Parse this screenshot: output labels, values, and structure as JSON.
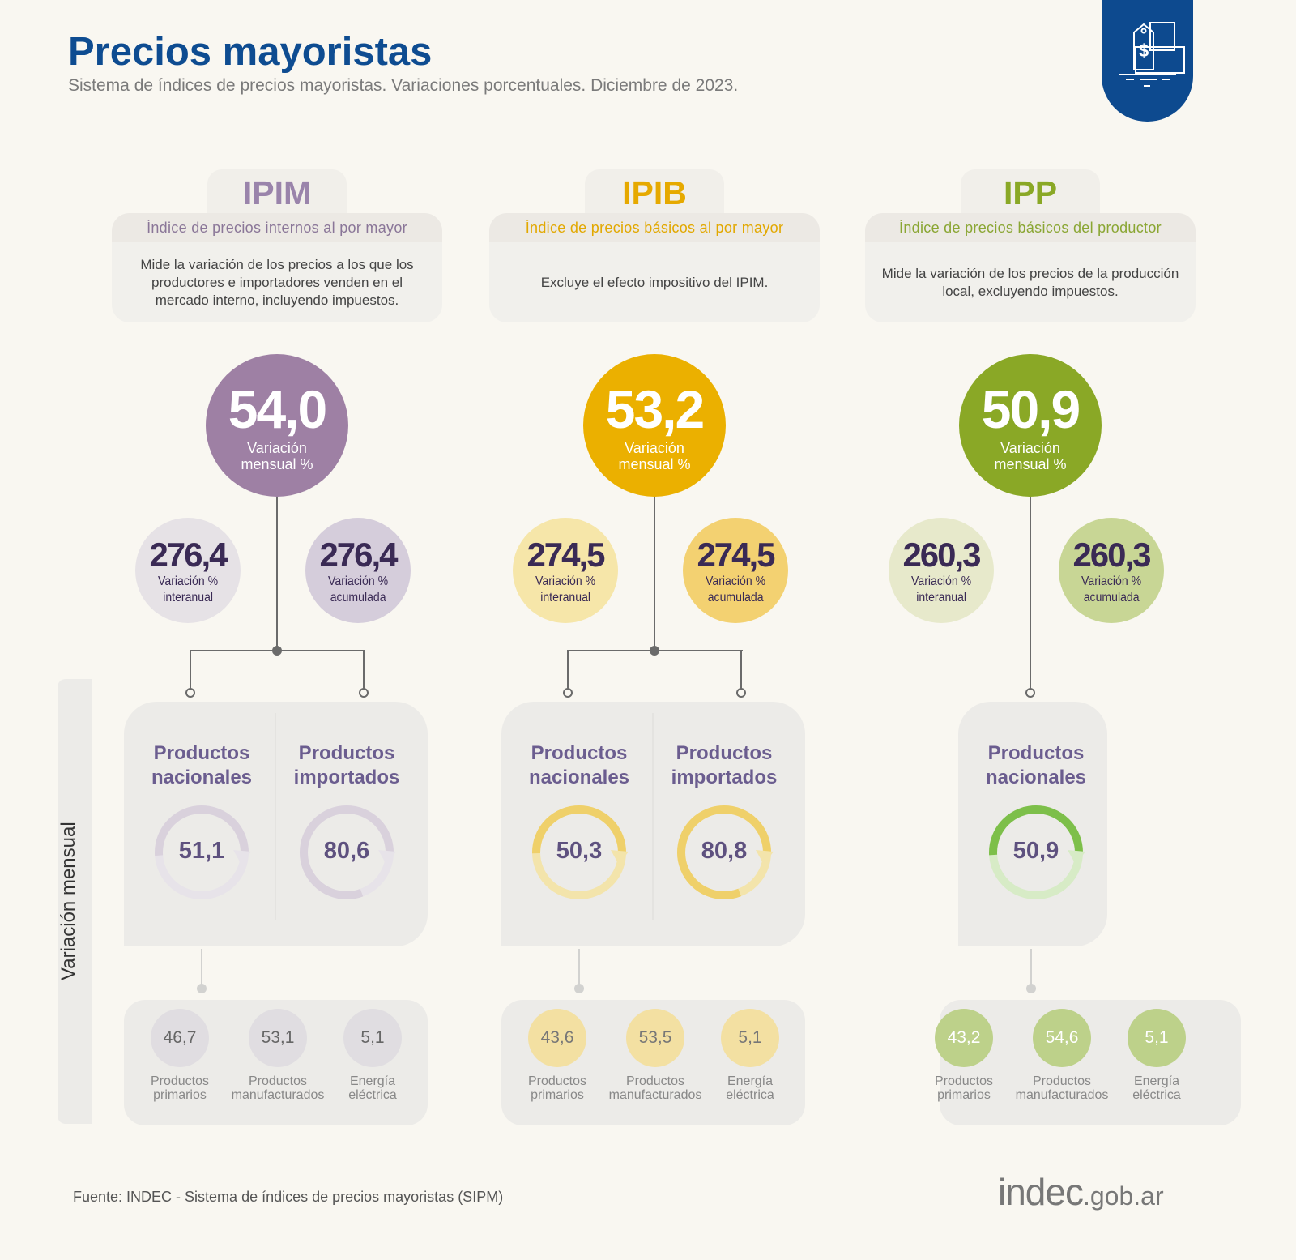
{
  "header": {
    "title": "Precios mayoristas",
    "subtitle": "Sistema de índices de precios mayoristas. Variaciones porcentuales. Diciembre de 2023.",
    "badge_icon": "price-tag-boxes-icon"
  },
  "side_label": "Variación mensual",
  "columns": [
    {
      "code": "IPIM",
      "name": "Índice de precios internos al por mayor",
      "description": "Mide la variación de los precios a los que los productores e importadores venden en el mercado interno, incluyendo impuestos.",
      "monthly": {
        "value": "54,0",
        "label1": "Variación",
        "label2": "mensual %"
      },
      "interanual": {
        "value": "276,4",
        "label1": "Variación %",
        "label2": "interanual"
      },
      "acumulada": {
        "value": "276,4",
        "label1": "Variación %",
        "label2": "acumulada"
      },
      "products": [
        {
          "label1": "Productos",
          "label2": "nacionales",
          "value": "51,1",
          "fill": 51.1
        },
        {
          "label1": "Productos",
          "label2": "importados",
          "value": "80,6",
          "fill": 80.6
        }
      ],
      "breakdown": [
        {
          "value": "46,7",
          "label1": "Productos",
          "label2": "primarios"
        },
        {
          "value": "53,1",
          "label1": "Productos",
          "label2": "manufacturados"
        },
        {
          "value": "5,1",
          "label1": "Energía",
          "label2": "eléctrica"
        }
      ],
      "colors": {
        "main": "#9e80a4",
        "title": "#9a84ab",
        "sub": "#8a7698",
        "inter": "#e6e2e6",
        "acum": "#d5cddb",
        "ring": "#d9d1dc",
        "ringBg": "#e7e3e9",
        "bc": "#e0dde1",
        "bcText": "#666666"
      }
    },
    {
      "code": "IPIB",
      "name": "Índice de precios básicos al por mayor",
      "description": "Excluye el efecto impositivo del IPIM.",
      "monthly": {
        "value": "53,2",
        "label1": "Variación",
        "label2": "mensual %"
      },
      "interanual": {
        "value": "274,5",
        "label1": "Variación %",
        "label2": "interanual"
      },
      "acumulada": {
        "value": "274,5",
        "label1": "Variación %",
        "label2": "acumulada"
      },
      "products": [
        {
          "label1": "Productos",
          "label2": "nacionales",
          "value": "50,3",
          "fill": 50.3
        },
        {
          "label1": "Productos",
          "label2": "importados",
          "value": "80,8",
          "fill": 80.8
        }
      ],
      "breakdown": [
        {
          "value": "43,6",
          "label1": "Productos",
          "label2": "primarios"
        },
        {
          "value": "53,5",
          "label1": "Productos",
          "label2": "manufacturados"
        },
        {
          "value": "5,1",
          "label1": "Energía",
          "label2": "eléctrica"
        }
      ],
      "colors": {
        "main": "#ebb000",
        "title": "#e6a900",
        "sub": "#e2a800",
        "inter": "#f6e6a9",
        "acum": "#f3d171",
        "ring": "#efd06a",
        "ringBg": "#f3e4ab",
        "bc": "#f3e0a2",
        "bcText": "#777777"
      }
    },
    {
      "code": "IPP",
      "name": "Índice de precios básicos del productor",
      "description": "Mide la variación de los precios de la producción local, excluyendo impuestos.",
      "monthly": {
        "value": "50,9",
        "label1": "Variación",
        "label2": "mensual %"
      },
      "interanual": {
        "value": "260,3",
        "label1": "Variación %",
        "label2": "interanual"
      },
      "acumulada": {
        "value": "260,3",
        "label1": "Variación %",
        "label2": "acumulada"
      },
      "products": [
        {
          "label1": "Productos",
          "label2": "nacionales",
          "value": "50,9",
          "fill": 50.9
        }
      ],
      "breakdown": [
        {
          "value": "43,2",
          "label1": "Productos",
          "label2": "primarios"
        },
        {
          "value": "54,6",
          "label1": "Productos",
          "label2": "manufacturados"
        },
        {
          "value": "5,1",
          "label1": "Energía",
          "label2": "eléctrica"
        }
      ],
      "colors": {
        "main": "#8aa826",
        "title": "#8aa826",
        "sub": "#8aa633",
        "inter": "#e7e9cb",
        "acum": "#c8d695",
        "ring": "#7dbf4a",
        "ringBg": "#d7ebc6",
        "bc": "#bdd18a",
        "bcText": "#ffffff"
      }
    }
  ],
  "footer": {
    "source": "Fuente: INDEC - Sistema de índices de precios mayoristas (SIPM)",
    "logo_text": "indec",
    "logo_domain": ".gob.ar"
  }
}
